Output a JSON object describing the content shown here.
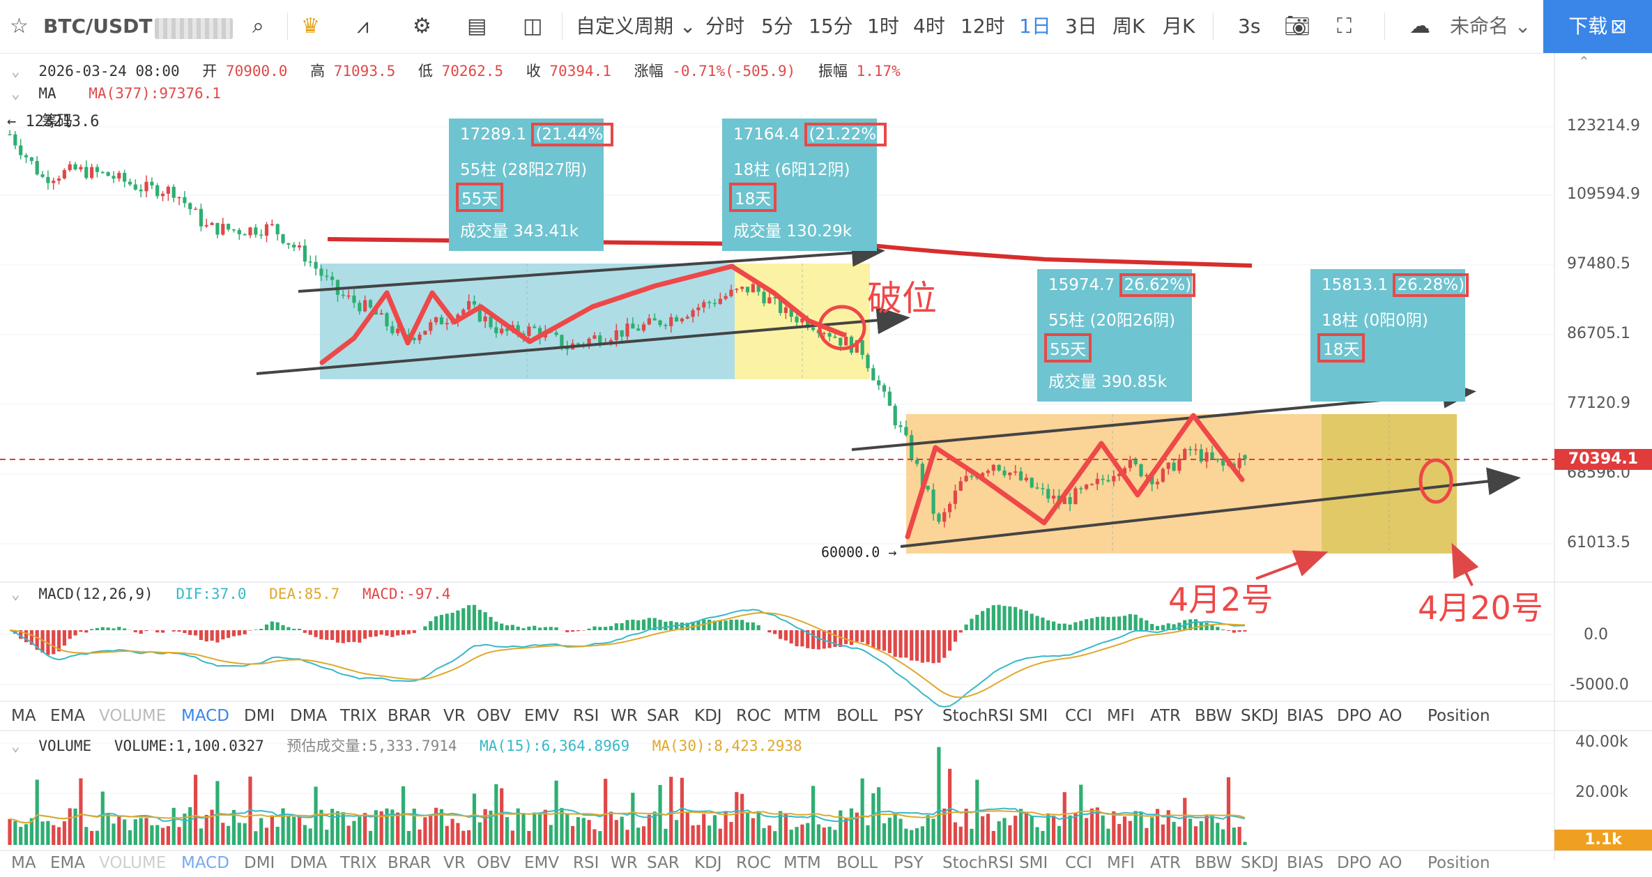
{
  "toolbar": {
    "symbol": "BTC/USDT",
    "period_custom": "自定义周期",
    "periods": [
      "分时",
      "5分",
      "15分",
      "1时",
      "4时",
      "12时",
      "1日",
      "3日",
      "周K",
      "月K"
    ],
    "active_period": "1日",
    "refresh": "3s",
    "layout_name": "未命名",
    "download": "下载"
  },
  "ohlc": {
    "date": "2026-03-24 08:00",
    "open_label": "开",
    "open": "70900.0",
    "high_label": "高",
    "high": "71093.5",
    "low_label": "低",
    "low": "70262.5",
    "close_label": "收",
    "close": "70394.1",
    "change_label": "涨幅",
    "change": "-0.71%(-505.9)",
    "amp_label": "振幅",
    "amp": "1.17%"
  },
  "ma_legend": {
    "name": "MA",
    "value": "MA(377):97376.1"
  },
  "chips_label": "筹码",
  "max_marker": "← 123213.6",
  "min_marker": "60000.0 →",
  "price_axis": [
    "123214.9",
    "109594.9",
    "97480.5",
    "86705.1",
    "77120.9",
    "68596.0",
    "61013.5"
  ],
  "current_price": "70394.1",
  "boxes": [
    {
      "l1a": "17289.1",
      "l1b": "(21.44%)",
      "l2": "55柱 (28阳27阴)",
      "l3": "55天",
      "l4": "成交量 343.41k"
    },
    {
      "l1a": "17164.4",
      "l1b": "(21.22%)",
      "l2": "18柱 (6阳12阴)",
      "l3": "18天",
      "l4": "成交量 130.29k"
    },
    {
      "l1a": "15974.7",
      "l1b": "26.62%)",
      "l2": "55柱 (20阳26阴)",
      "l3": "55天",
      "l4": "成交量 390.85k"
    },
    {
      "l1a": "15813.1",
      "l1b": "26.28%)",
      "l2": "18柱 (0阳0阴)",
      "l3": "18天",
      "l4": ""
    }
  ],
  "annotations": {
    "break": "破位",
    "date1": "4月2号",
    "date2": "4月20号"
  },
  "macd_legend": {
    "name": "MACD(12,26,9)",
    "dif": "DIF:37.0",
    "dea": "DEA:85.7",
    "macd": "MACD:-97.4"
  },
  "macd_axis": [
    "0.0",
    "-5000.0"
  ],
  "indicator_tabs": [
    "MA",
    "EMA",
    "VOLUME",
    "MACD",
    "DMI",
    "DMA",
    "TRIX",
    "BRAR",
    "VR",
    "OBV",
    "EMV",
    "RSI",
    "WR",
    "SAR",
    "KDJ",
    "ROC",
    "MTM",
    "BOLL",
    "PSY",
    "StochRSI",
    "SMI",
    "CCI",
    "MFI",
    "ATR",
    "BBW",
    "SKDJ",
    "BIAS",
    "DPO",
    "AO",
    "Position"
  ],
  "active_indicator": "MACD",
  "volume_legend": {
    "name": "VOLUME",
    "value": "VOLUME:1,100.0327",
    "est": "预估成交量:5,333.7914",
    "ma15": "MA(15):6,364.8969",
    "ma30": "MA(30):8,423.2938"
  },
  "volume_axis": [
    "40.00k",
    "20.00k"
  ],
  "current_volume": "1.1k",
  "colors": {
    "up": "#e04848",
    "down": "#2fae72",
    "accent": "#3a86e8",
    "box_cyan": "#72c8d4",
    "box_yellow": "#fbf19a",
    "box_orange": "#fbcf8c",
    "box_olive": "#dcc04c",
    "resistance": "#d82d2d"
  },
  "chart_data": {
    "type": "candlestick",
    "symbol": "BTC/USDT",
    "interval": "1日",
    "last_bar": {
      "date": "2026-03-24",
      "open": 70900.0,
      "high": 71093.5,
      "low": 70262.5,
      "close": 70394.1
    },
    "ma": {
      "period": 377,
      "value": 97376.1
    },
    "visible_high": 123213.6,
    "visible_low": 60000.0,
    "y_axis_ticks": [
      123214.9,
      109594.9,
      97480.5,
      86705.1,
      77120.9,
      68596.0,
      61013.5
    ],
    "price_path_approx": [
      [
        0,
        121500
      ],
      [
        6,
        113000
      ],
      [
        12,
        114500
      ],
      [
        18,
        113500
      ],
      [
        24,
        111000
      ],
      [
        30,
        110500
      ],
      [
        36,
        104000
      ],
      [
        42,
        103500
      ],
      [
        48,
        104000
      ],
      [
        54,
        99000
      ],
      [
        60,
        93000
      ],
      [
        66,
        90500
      ],
      [
        72,
        86000
      ],
      [
        78,
        88500
      ],
      [
        84,
        91000
      ],
      [
        90,
        87000
      ],
      [
        96,
        87500
      ],
      [
        102,
        85000
      ],
      [
        108,
        86500
      ],
      [
        114,
        87500
      ],
      [
        120,
        89000
      ],
      [
        126,
        91000
      ],
      [
        132,
        93000
      ],
      [
        136,
        94000
      ],
      [
        142,
        90000
      ],
      [
        148,
        88000
      ],
      [
        152,
        86000
      ],
      [
        156,
        84500
      ],
      [
        160,
        78000
      ],
      [
        164,
        72500
      ],
      [
        170,
        63000
      ],
      [
        174,
        67500
      ],
      [
        180,
        70000
      ],
      [
        186,
        67500
      ],
      [
        192,
        65500
      ],
      [
        198,
        67000
      ],
      [
        204,
        70000
      ],
      [
        210,
        68000
      ],
      [
        216,
        71500
      ],
      [
        222,
        69500
      ],
      [
        226,
        70394.1
      ]
    ],
    "macd": {
      "params": "12,26,9",
      "dif": 37.0,
      "dea": 85.7,
      "macd": -97.4
    },
    "volume": {
      "last": 1100.0327,
      "estimated": 5333.7914,
      "ma15": 6364.8969,
      "ma30": 8423.2938
    },
    "measurements": [
      {
        "change": 17289.1,
        "pct": 21.44,
        "bars": 55,
        "up_bars": 28,
        "down_bars": 27,
        "days": 55,
        "volume": "343.41k"
      },
      {
        "change": 17164.4,
        "pct": 21.22,
        "bars": 18,
        "up_bars": 6,
        "down_bars": 12,
        "days": 18,
        "volume": "130.29k"
      },
      {
        "change": 15974.7,
        "pct": 26.62,
        "bars": 55,
        "up_bars": 20,
        "down_bars": 26,
        "days": 55,
        "volume": "390.85k"
      },
      {
        "change": 15813.1,
        "pct": 26.28,
        "bars": 18,
        "up_bars": 0,
        "down_bars": 0,
        "days": 18
      }
    ]
  }
}
